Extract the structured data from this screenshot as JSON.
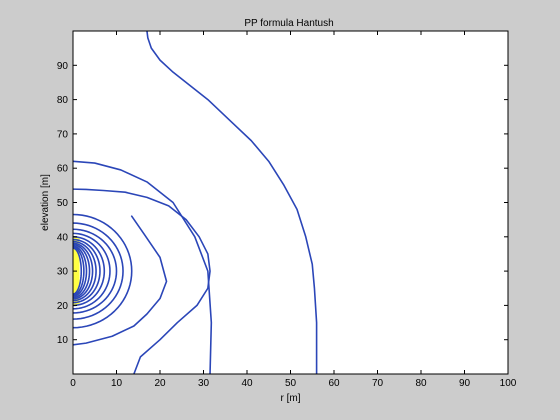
{
  "figure": {
    "background": "#cccccc",
    "axes_background": "#ffffff"
  },
  "chart_data": {
    "type": "line",
    "title": "PP formula Hantush",
    "xlabel": "r [m]",
    "ylabel": "elevation [m]",
    "xlim": [
      0,
      100
    ],
    "ylim": [
      0,
      100
    ],
    "xticks": [
      0,
      10,
      20,
      30,
      40,
      50,
      60,
      70,
      80,
      90,
      100
    ],
    "yticks": [
      10,
      20,
      30,
      40,
      50,
      60,
      70,
      80,
      90
    ],
    "grid": false,
    "legend": "none",
    "contour_color": "#2b46b8",
    "well_screen": {
      "color": "#ffff44",
      "x": [
        0,
        1.5
      ],
      "y": [
        20,
        40
      ]
    },
    "series": [
      {
        "x": [
          0,
          3,
          9,
          14,
          17,
          20,
          21.5,
          20,
          16.5,
          13.5
        ],
        "y": [
          8.5,
          9,
          11,
          14,
          17.5,
          22,
          27,
          34,
          40.5,
          46
        ]
      },
      {
        "x": [
          14,
          15.5,
          20,
          24,
          28.5,
          31,
          31.5,
          31,
          29,
          26,
          22,
          17,
          12,
          7,
          3,
          0
        ],
        "y": [
          0,
          5,
          10,
          15,
          20,
          25,
          30,
          35,
          40,
          45,
          49,
          51.5,
          53,
          53.5,
          53.8,
          53.9
        ]
      },
      {
        "x": [
          31.5,
          31.8,
          31,
          28,
          23,
          17,
          11,
          5,
          0
        ],
        "y": [
          0,
          15,
          30,
          40,
          50,
          56,
          59.5,
          61.5,
          62
        ]
      },
      {
        "x": [
          56,
          56,
          55.5,
          55,
          53.5,
          51.5,
          48.5,
          45,
          41,
          36,
          31,
          27,
          23,
          20,
          18,
          17.2,
          17
        ],
        "y": [
          0,
          15,
          25,
          32,
          40,
          48,
          55,
          62,
          68,
          74,
          80,
          84,
          88,
          91.5,
          95,
          98,
          100
        ]
      },
      {
        "rx": 13.5,
        "ry": 16.5
      },
      {
        "rx": 11.5,
        "ry": 14
      },
      {
        "rx": 10,
        "ry": 12.2
      },
      {
        "rx": 8.5,
        "ry": 11
      },
      {
        "rx": 7.2,
        "ry": 10
      },
      {
        "rx": 6.2,
        "ry": 9.2
      },
      {
        "rx": 5.3,
        "ry": 8.6
      },
      {
        "rx": 4.5,
        "ry": 8.1
      },
      {
        "rx": 3.8,
        "ry": 7.7
      },
      {
        "rx": 3.1,
        "ry": 7.3
      },
      {
        "rx": 2.5,
        "ry": 7
      },
      {
        "rx": 1.9,
        "ry": 6.7
      }
    ],
    "ellipse_center": [
      0,
      30
    ]
  }
}
